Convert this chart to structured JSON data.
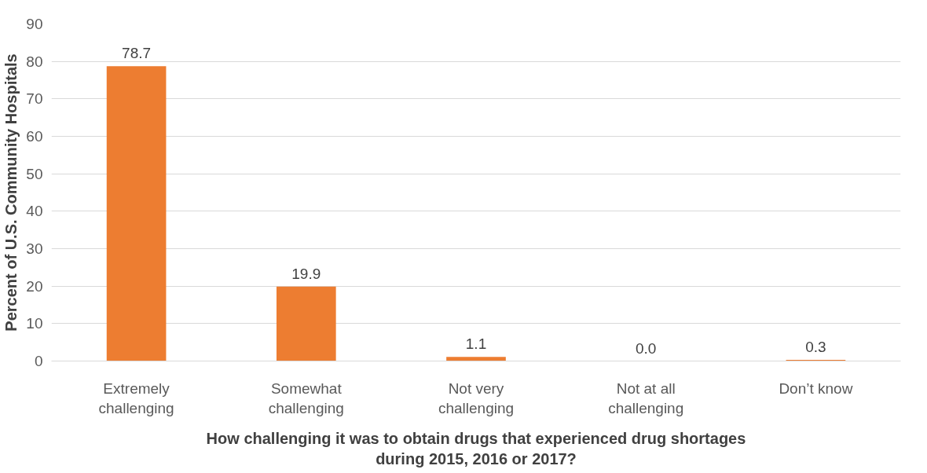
{
  "chart_data": {
    "type": "bar",
    "xlabel": "How challenging it was to obtain drugs that experienced drug shortages\nduring 2015, 2016 or 2017?",
    "ylabel": "Percent of U.S. Community Hospitals",
    "categories": [
      "Extremely\nchallenging",
      "Somewhat\nchallenging",
      "Not very\nchallenging",
      "Not at all\nchallenging",
      "Don’t know"
    ],
    "values": [
      78.7,
      19.9,
      1.1,
      0.0,
      0.3
    ],
    "value_labels": [
      "78.7",
      "19.9",
      "1.1",
      "0.0",
      "0.3"
    ],
    "color": "#ed7d31",
    "ylim": [
      0,
      90
    ],
    "yticks": [
      0,
      10,
      20,
      30,
      40,
      50,
      60,
      70,
      80,
      90
    ],
    "grid": "y"
  }
}
